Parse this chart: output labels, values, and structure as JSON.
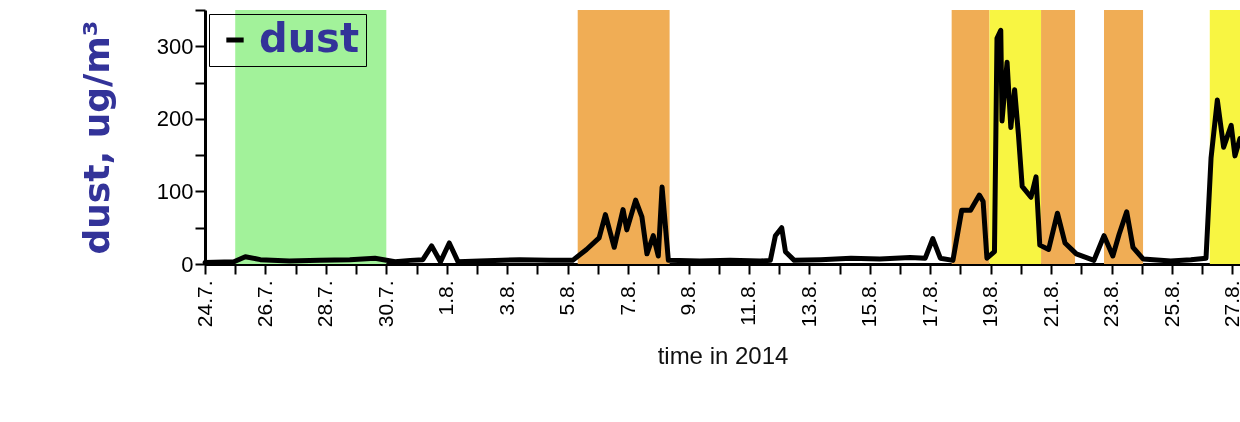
{
  "chart_data": {
    "type": "line",
    "xlabel": "time in 2014",
    "ylabel": "dust, ug/m³",
    "xlim": [
      "2014-07-24T00:00",
      "2014-08-27T06:00"
    ],
    "ylim": [
      0,
      350
    ],
    "xticks": [
      {
        "value": "2014-07-24",
        "label": "24.7."
      },
      {
        "value": "2014-07-25",
        "label": null
      },
      {
        "value": "2014-07-26",
        "label": "26.7."
      },
      {
        "value": "2014-07-27",
        "label": null
      },
      {
        "value": "2014-07-28",
        "label": "28.7."
      },
      {
        "value": "2014-07-29",
        "label": null
      },
      {
        "value": "2014-07-30",
        "label": "30.7."
      },
      {
        "value": "2014-07-31",
        "label": null
      },
      {
        "value": "2014-08-01",
        "label": "1.8."
      },
      {
        "value": "2014-08-02",
        "label": null
      },
      {
        "value": "2014-08-03",
        "label": "3.8."
      },
      {
        "value": "2014-08-04",
        "label": null
      },
      {
        "value": "2014-08-05",
        "label": "5.8."
      },
      {
        "value": "2014-08-06",
        "label": null
      },
      {
        "value": "2014-08-07",
        "label": "7.8."
      },
      {
        "value": "2014-08-08",
        "label": null
      },
      {
        "value": "2014-08-09",
        "label": "9.8."
      },
      {
        "value": "2014-08-10",
        "label": null
      },
      {
        "value": "2014-08-11",
        "label": "11.8."
      },
      {
        "value": "2014-08-12",
        "label": null
      },
      {
        "value": "2014-08-13",
        "label": "13.8."
      },
      {
        "value": "2014-08-14",
        "label": null
      },
      {
        "value": "2014-08-15",
        "label": "15.8."
      },
      {
        "value": "2014-08-16",
        "label": null
      },
      {
        "value": "2014-08-17",
        "label": "17.8."
      },
      {
        "value": "2014-08-18",
        "label": null
      },
      {
        "value": "2014-08-19",
        "label": "19.8."
      },
      {
        "value": "2014-08-20",
        "label": null
      },
      {
        "value": "2014-08-21",
        "label": "21.8."
      },
      {
        "value": "2014-08-22",
        "label": null
      },
      {
        "value": "2014-08-23",
        "label": "23.8."
      },
      {
        "value": "2014-08-24",
        "label": null
      },
      {
        "value": "2014-08-25",
        "label": "25.8."
      },
      {
        "value": "2014-08-26",
        "label": null
      },
      {
        "value": "2014-08-27",
        "label": "27.8."
      }
    ],
    "yticks": [
      0,
      {
        "value": 50,
        "label": null
      },
      100,
      {
        "value": 150,
        "label": null
      },
      200,
      {
        "value": 250,
        "label": null
      },
      300,
      {
        "value": 350,
        "label": null
      }
    ],
    "legend": "top left",
    "bands": [
      {
        "axis": "x",
        "from": "2014-07-25T00:00",
        "to": "2014-07-30T00:00",
        "color": "#a2f29a"
      },
      {
        "axis": "x",
        "from": "2014-08-05T08:00",
        "to": "2014-08-08T09:00",
        "color": "#f0ad55"
      },
      {
        "axis": "x",
        "from": "2014-08-17T17:00",
        "to": "2014-08-18T23:00",
        "color": "#f0ad55"
      },
      {
        "axis": "x",
        "from": "2014-08-18T23:00",
        "to": "2014-08-20T16:00",
        "color": "#f8f542"
      },
      {
        "axis": "x",
        "from": "2014-08-20T16:00",
        "to": "2014-08-21T19:00",
        "color": "#f0ad55"
      },
      {
        "axis": "x",
        "from": "2014-08-22T18:00",
        "to": "2014-08-24T01:00",
        "color": "#f0ad55"
      },
      {
        "axis": "x",
        "from": "2014-08-26T06:00",
        "to": "2014-08-27T06:00",
        "color": "#f8f542"
      }
    ],
    "series": [
      {
        "name": "dust",
        "color": "#000000",
        "x": [
          "2014-07-24T00:00",
          "2014-07-24T23:00",
          "2014-07-25T08:00",
          "2014-07-25T20:00",
          "2014-07-26T19:00",
          "2014-07-27T19:00",
          "2014-07-28T19:00",
          "2014-07-29T15:00",
          "2014-07-30T07:00",
          "2014-07-30T19:00",
          "2014-07-31T05:00",
          "2014-07-31T12:00",
          "2014-07-31T19:00",
          "2014-08-01T02:00",
          "2014-08-01T09:00",
          "2014-08-02T02:00",
          "2014-08-03T10:00",
          "2014-08-04T10:00",
          "2014-08-05T04:00",
          "2014-08-05T15:00",
          "2014-08-06T01:00",
          "2014-08-06T06:00",
          "2014-08-06T13:00",
          "2014-08-06T20:00",
          "2014-08-06T23:00",
          "2014-08-07T06:00",
          "2014-08-07T11:00",
          "2014-08-07T15:00",
          "2014-08-07T20:00",
          "2014-08-08T00:00",
          "2014-08-08T03:00",
          "2014-08-08T08:00",
          "2014-08-09T09:00",
          "2014-08-10T09:00",
          "2014-08-11T09:00",
          "2014-08-11T17:00",
          "2014-08-11T21:00",
          "2014-08-12T02:00",
          "2014-08-12T05:00",
          "2014-08-12T12:00",
          "2014-08-13T09:00",
          "2014-08-14T09:00",
          "2014-08-15T08:00",
          "2014-08-16T08:00",
          "2014-08-16T20:00",
          "2014-08-17T02:00",
          "2014-08-17T08:00",
          "2014-08-17T18:00",
          "2014-08-18T01:00",
          "2014-08-18T08:00",
          "2014-08-18T15:00",
          "2014-08-18T18:00",
          "2014-08-18T21:00",
          "2014-08-19T03:00",
          "2014-08-19T05:00",
          "2014-08-19T08:00",
          "2014-08-19T09:00",
          "2014-08-19T13:00",
          "2014-08-19T16:00",
          "2014-08-19T19:00",
          "2014-08-19T22:00",
          "2014-08-20T01:00",
          "2014-08-20T08:00",
          "2014-08-20T12:00",
          "2014-08-20T15:00",
          "2014-08-20T22:00",
          "2014-08-21T05:00",
          "2014-08-21T11:00",
          "2014-08-21T20:00",
          "2014-08-22T10:00",
          "2014-08-22T18:00",
          "2014-08-23T01:00",
          "2014-08-23T06:00",
          "2014-08-23T12:00",
          "2014-08-23T17:00",
          "2014-08-24T01:00",
          "2014-08-24T23:00",
          "2014-08-25T15:00",
          "2014-08-26T03:00",
          "2014-08-26T07:00",
          "2014-08-26T12:00",
          "2014-08-26T17:00",
          "2014-08-26T23:00",
          "2014-08-27T02:00",
          "2014-08-27T06:00"
        ],
        "values": [
          2,
          3,
          10,
          6,
          4,
          5,
          6,
          8,
          3,
          5,
          6,
          25,
          3,
          29,
          3,
          4,
          6,
          5,
          5,
          20,
          36,
          68,
          23,
          75,
          47,
          88,
          65,
          14,
          39,
          11,
          106,
          5,
          4,
          5,
          4,
          5,
          39,
          50,
          17,
          5,
          6,
          8,
          7,
          9,
          8,
          35,
          8,
          5,
          74,
          74,
          95,
          86,
          8,
          17,
          311,
          322,
          197,
          278,
          188,
          240,
          179,
          107,
          92,
          120,
          26,
          20,
          70,
          29,
          14,
          5,
          39,
          11,
          41,
          72,
          23,
          7,
          4,
          6,
          8,
          146,
          226,
          161,
          191,
          149,
          173
        ]
      }
    ]
  }
}
